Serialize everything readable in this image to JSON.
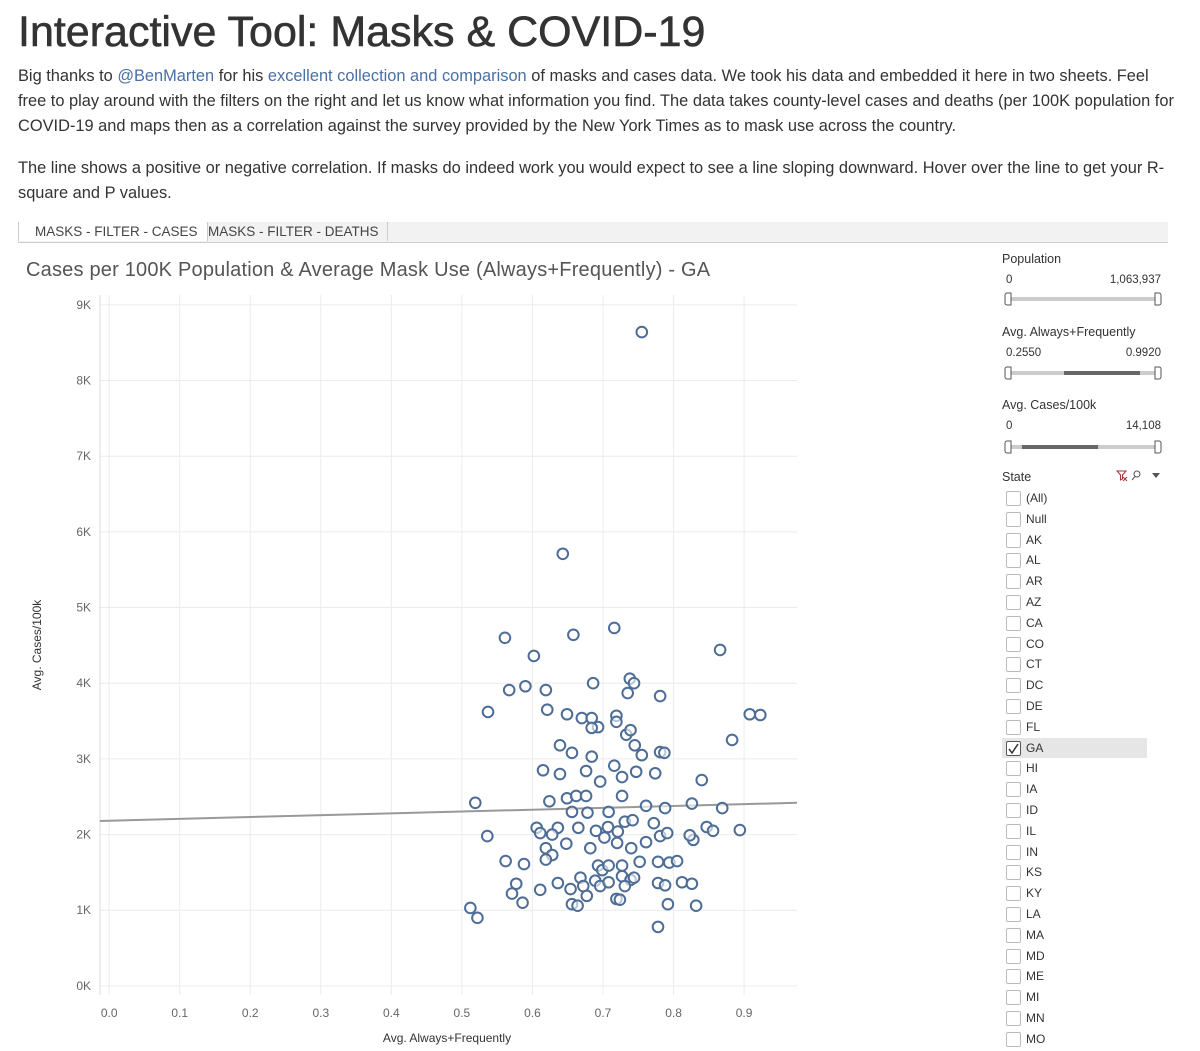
{
  "header": {
    "title": "Interactive Tool: Masks & COVID-19"
  },
  "intro": {
    "p1": {
      "before": "Big thanks to",
      "link1": "@BenMarten",
      "middle": "for his",
      "link2": "excellent collection and comparison",
      "after": "of masks and cases data. We took his data and embedded it here in two sheets. Feel free to play around with the filters on the right and let us know what information you find. The data takes county-level cases and deaths (per 100K population for COVID-19 and maps then as a correlation against the survey provided by the New York Times as to mask use across the country."
    },
    "p2": "The line shows a positive or negative correlation. If masks do indeed work you would expect to see a line sloping downward. Hover over the line to get your R-square and P values."
  },
  "tabs": [
    "MASKS - FILTER - CASES",
    "MASKS - FILTER - DEATHS"
  ],
  "chart_data": {
    "type": "scatter",
    "title": "Cases per 100K Population & Average Mask Use (Always+Frequently) - GA",
    "x_label": "Avg. Always+Frequently",
    "y_label": "Avg. Cases/100k",
    "color": "#4e6d96",
    "grid": true,
    "xlim": [
      -0.013,
      0.975
    ],
    "ylim": [
      -120,
      9130
    ],
    "xticks": [
      {
        "value": 0,
        "label": "0.0"
      },
      0.1,
      0.2,
      0.3,
      0.4,
      0.5,
      0.6,
      0.7,
      0.8,
      0.9
    ],
    "yticks": [
      {
        "value": 0,
        "label": "0K"
      },
      {
        "value": 1000,
        "label": "1K"
      },
      {
        "value": 2000,
        "label": "2K"
      },
      {
        "value": 3000,
        "label": "3K"
      },
      {
        "value": 4000,
        "label": "4K"
      },
      {
        "value": 5000,
        "label": "5K"
      },
      {
        "value": 6000,
        "label": "6K"
      },
      {
        "value": 7000,
        "label": "7K"
      },
      {
        "value": 8000,
        "label": "8K"
      },
      {
        "value": 9000,
        "label": "9K"
      }
    ],
    "x": [
      0.755,
      0.643,
      0.561,
      0.658,
      0.716,
      0.602,
      0.866,
      0.567,
      0.619,
      0.59,
      0.686,
      0.738,
      0.744,
      0.735,
      0.781,
      0.537,
      0.621,
      0.649,
      0.67,
      0.684,
      0.719,
      0.719,
      0.693,
      0.684,
      0.733,
      0.739,
      0.908,
      0.923,
      0.883,
      0.639,
      0.656,
      0.684,
      0.745,
      0.755,
      0.781,
      0.787,
      0.676,
      0.639,
      0.615,
      0.716,
      0.727,
      0.747,
      0.774,
      0.696,
      0.84,
      0.649,
      0.662,
      0.676,
      0.624,
      0.727,
      0.519,
      0.761,
      0.788,
      0.826,
      0.869,
      0.678,
      0.656,
      0.708,
      0.731,
      0.742,
      0.772,
      0.707,
      0.69,
      0.665,
      0.636,
      0.606,
      0.611,
      0.628,
      0.536,
      0.702,
      0.72,
      0.74,
      0.761,
      0.781,
      0.791,
      0.828,
      0.847,
      0.856,
      0.894,
      0.823,
      0.721,
      0.648,
      0.619,
      0.628,
      0.562,
      0.588,
      0.619,
      0.682,
      0.693,
      0.699,
      0.708,
      0.727,
      0.752,
      0.794,
      0.805,
      0.778,
      0.577,
      0.571,
      0.611,
      0.654,
      0.668,
      0.672,
      0.689,
      0.696,
      0.708,
      0.727,
      0.739,
      0.744,
      0.778,
      0.788,
      0.812,
      0.826,
      0.731,
      0.636,
      0.586,
      0.656,
      0.664,
      0.677,
      0.719,
      0.724,
      0.792,
      0.832,
      0.512,
      0.522,
      0.778
    ],
    "y": [
      8640,
      5710,
      4600,
      4640,
      4730,
      4360,
      4440,
      3910,
      3910,
      3960,
      4000,
      4060,
      4000,
      3870,
      3830,
      3620,
      3650,
      3590,
      3540,
      3540,
      3570,
      3490,
      3420,
      3410,
      3320,
      3380,
      3590,
      3580,
      3250,
      3180,
      3080,
      3030,
      3180,
      3050,
      3090,
      3080,
      2840,
      2800,
      2850,
      2910,
      2760,
      2830,
      2810,
      2700,
      2720,
      2480,
      2510,
      2510,
      2440,
      2510,
      2420,
      2380,
      2350,
      2410,
      2350,
      2290,
      2300,
      2300,
      2170,
      2190,
      2150,
      2100,
      2050,
      2090,
      2090,
      2090,
      2020,
      2000,
      1980,
      1960,
      1890,
      1820,
      1900,
      1980,
      2020,
      1930,
      2100,
      2050,
      2060,
      1990,
      2040,
      1880,
      1820,
      1730,
      1650,
      1610,
      1670,
      1820,
      1590,
      1530,
      1590,
      1590,
      1640,
      1630,
      1650,
      1640,
      1350,
      1220,
      1270,
      1280,
      1430,
      1320,
      1390,
      1320,
      1370,
      1450,
      1400,
      1430,
      1360,
      1330,
      1370,
      1350,
      1320,
      1360,
      1100,
      1080,
      1060,
      1190,
      1150,
      1140,
      1080,
      1060,
      1030,
      900,
      780
    ],
    "trend_line": {
      "x": [
        -0.013,
        0.975
      ],
      "y": [
        2180,
        2420
      ],
      "color": "#999999"
    }
  },
  "filters": [
    {
      "label": "Population",
      "min": "0",
      "max": "1,063,937"
    },
    {
      "label": "Avg. Always+Frequently",
      "min": "0.2550",
      "max": "0.9920"
    },
    {
      "label": "Avg. Cases/100k",
      "min": "0",
      "max": "14,108"
    }
  ],
  "state_filter": {
    "label": "State",
    "options": [
      {
        "label": "(All)",
        "checked": false
      },
      {
        "label": "Null",
        "checked": false
      },
      {
        "label": "AK",
        "checked": false
      },
      {
        "label": "AL",
        "checked": false
      },
      {
        "label": "AR",
        "checked": false
      },
      {
        "label": "AZ",
        "checked": false
      },
      {
        "label": "CA",
        "checked": false
      },
      {
        "label": "CO",
        "checked": false
      },
      {
        "label": "CT",
        "checked": false
      },
      {
        "label": "DC",
        "checked": false
      },
      {
        "label": "DE",
        "checked": false
      },
      {
        "label": "FL",
        "checked": false
      },
      {
        "label": "GA",
        "checked": true
      },
      {
        "label": "HI",
        "checked": false
      },
      {
        "label": "IA",
        "checked": false
      },
      {
        "label": "ID",
        "checked": false
      },
      {
        "label": "IL",
        "checked": false
      },
      {
        "label": "IN",
        "checked": false
      },
      {
        "label": "KS",
        "checked": false
      },
      {
        "label": "KY",
        "checked": false
      },
      {
        "label": "LA",
        "checked": false
      },
      {
        "label": "MA",
        "checked": false
      },
      {
        "label": "MD",
        "checked": false
      },
      {
        "label": "ME",
        "checked": false
      },
      {
        "label": "MI",
        "checked": false
      },
      {
        "label": "MN",
        "checked": false
      },
      {
        "label": "MO",
        "checked": false
      }
    ]
  }
}
